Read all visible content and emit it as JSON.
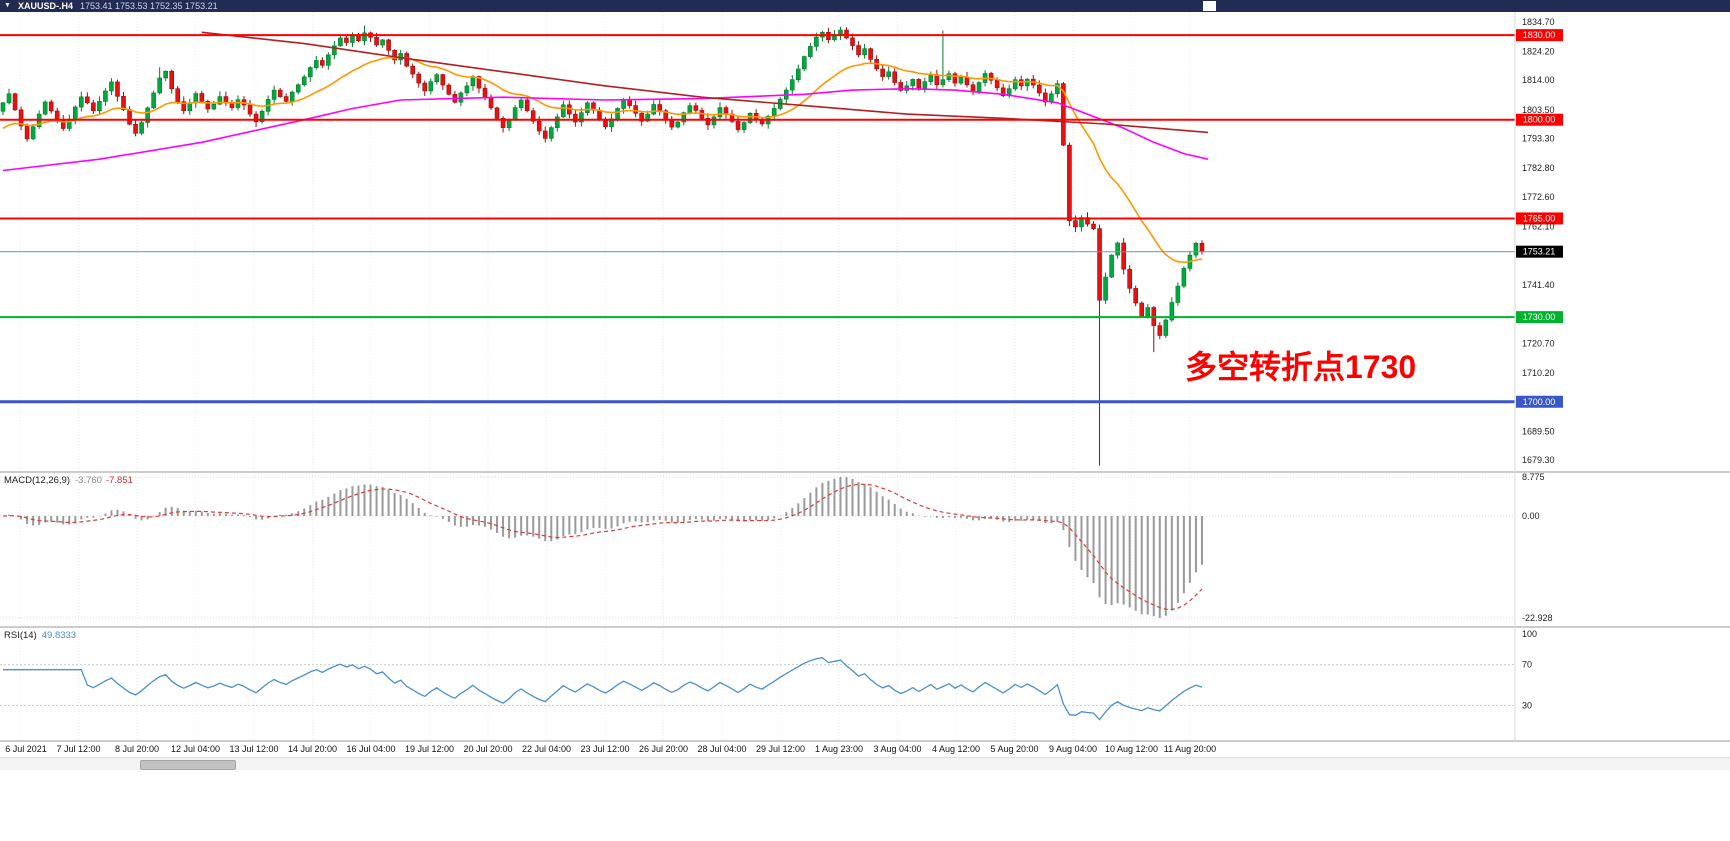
{
  "title_bar": {
    "dropdown_icon": "▼",
    "symbol": "XAUUSD-.H4",
    "ohlc": "1753.41 1753.53 1752.35 1753.21"
  },
  "annotation": {
    "text": "多空转折点1730",
    "color": "#ff0000"
  },
  "colors": {
    "candle_up": "#00a83e",
    "candle_up_border": "#077a2e",
    "candle_down": "#e61212",
    "candle_down_border": "#9c0b0b",
    "grid": "#ececec",
    "macd_hist": "#9a9a9a",
    "macd_signal": "#e03a3a",
    "rsi_line": "#4a8fce"
  },
  "price_axis": {
    "ticks": [
      "1834.70",
      "1824.20",
      "1814.00",
      "1803.50",
      "1793.30",
      "1782.80",
      "1772.60",
      "1762.10",
      "1741.40",
      "1720.70",
      "1710.20",
      "1689.50",
      "1679.30"
    ]
  },
  "macd": {
    "label": "MACD(12,26,9)",
    "value1": "-3.760",
    "value2": "-7.851",
    "axis": [
      "8.775",
      "0.00",
      "-22.928"
    ]
  },
  "rsi": {
    "label": "RSI(14)",
    "value": "49.8333",
    "axis": [
      "100",
      "70",
      "30"
    ],
    "levels": [
      70,
      30
    ]
  },
  "time_axis": {
    "labels": [
      "6 Jul 2021",
      "7 Jul 12:00",
      "8 Jul 20:00",
      "12 Jul 04:00",
      "13 Jul 12:00",
      "14 Jul 20:00",
      "16 Jul 04:00",
      "19 Jul 12:00",
      "20 Jul 20:00",
      "22 Jul 04:00",
      "23 Jul 12:00",
      "26 Jul 20:00",
      "28 Jul 04:00",
      "29 Jul 12:00",
      "1 Aug 23:00",
      "3 Aug 04:00",
      "4 Aug 12:00",
      "5 Aug 20:00",
      "9 Aug 04:00",
      "10 Aug 12:00",
      "11 Aug 20:00"
    ]
  },
  "chart_data": {
    "type": "candlestick",
    "symbol": "XAUUSD",
    "timeframe": "H4",
    "last_candle": {
      "open": 1753.41,
      "high": 1753.53,
      "low": 1752.35,
      "close": 1753.21
    },
    "y_axis": {
      "top": 1838.2,
      "bottom": 1675.8
    },
    "x_count": 200,
    "first_open": 1803.0,
    "closes": [
      1806.0,
      1809.2,
      1803.5,
      1797.8,
      1793.2,
      1797.5,
      1802.0,
      1806.3,
      1803.1,
      1799.8,
      1796.9,
      1800.2,
      1804.5,
      1808.1,
      1806.0,
      1803.2,
      1806.5,
      1810.2,
      1813.4,
      1808.3,
      1803.6,
      1798.4,
      1795.2,
      1799.0,
      1804.2,
      1809.5,
      1814.8,
      1817.2,
      1811.0,
      1806.4,
      1803.2,
      1806.0,
      1809.3,
      1806.5,
      1803.8,
      1805.5,
      1808.2,
      1806.0,
      1804.3,
      1807.1,
      1805.2,
      1802.0,
      1799.3,
      1803.0,
      1807.2,
      1810.5,
      1808.2,
      1806.5,
      1809.8,
      1812.4,
      1815.2,
      1818.5,
      1821.0,
      1819.3,
      1823.0,
      1826.2,
      1829.0,
      1827.4,
      1830.2,
      1828.0,
      1830.8,
      1829.2,
      1826.5,
      1828.3,
      1824.6,
      1821.2,
      1823.5,
      1819.0,
      1816.2,
      1813.0,
      1810.2,
      1813.5,
      1816.0,
      1812.3,
      1809.0,
      1806.2,
      1809.5,
      1812.0,
      1815.3,
      1811.2,
      1808.0,
      1804.2,
      1800.5,
      1797.2,
      1800.0,
      1804.3,
      1807.0,
      1803.2,
      1799.5,
      1796.0,
      1793.4,
      1797.2,
      1801.0,
      1805.3,
      1802.0,
      1799.2,
      1802.5,
      1806.0,
      1803.4,
      1800.2,
      1797.5,
      1800.3,
      1804.0,
      1807.2,
      1805.0,
      1802.3,
      1799.5,
      1802.0,
      1805.4,
      1803.2,
      1800.0,
      1797.4,
      1799.2,
      1802.5,
      1805.0,
      1803.3,
      1800.5,
      1798.2,
      1801.0,
      1804.3,
      1802.0,
      1799.4,
      1796.5,
      1799.0,
      1802.3,
      1800.0,
      1798.5,
      1801.2,
      1804.0,
      1807.3,
      1810.5,
      1814.2,
      1818.0,
      1822.4,
      1826.0,
      1829.3,
      1831.0,
      1828.4,
      1830.2,
      1831.8,
      1829.0,
      1826.3,
      1823.0,
      1825.2,
      1821.4,
      1818.0,
      1815.3,
      1817.0,
      1813.2,
      1810.4,
      1812.0,
      1814.3,
      1811.2,
      1813.5,
      1816.0,
      1812.4,
      1814.2,
      1816.3,
      1813.0,
      1815.2,
      1812.4,
      1810.0,
      1813.2,
      1816.4,
      1814.0,
      1811.3,
      1808.5,
      1811.0,
      1814.2,
      1812.0,
      1814.4,
      1812.3,
      1809.5,
      1806.3,
      1809.2,
      1812.8,
      1791.0,
      1764.2,
      1762.0,
      1765.3,
      1763.0,
      1761.4,
      1736.0,
      1744.2,
      1752.0,
      1756.3,
      1747.0,
      1740.2,
      1735.0,
      1730.2,
      1733.4,
      1727.0,
      1723.5,
      1729.0,
      1735.2,
      1741.0,
      1747.3,
      1752.0,
      1756.2,
      1753.2
    ],
    "wick_overrides": {
      "26": {
        "high": 1818.6
      },
      "60": {
        "high": 1833.4
      },
      "139": {
        "high": 1833.0
      },
      "156": {
        "high": 1831.6
      },
      "182": {
        "low": 1677.4
      },
      "191": {
        "low": 1717.6
      }
    },
    "overlays": [
      {
        "name": "ma-fast-orange",
        "type": "ema",
        "period": 20,
        "seed": 1796,
        "color": "#ff9800"
      },
      {
        "name": "ma-mid-magenta",
        "type": "waypoints",
        "color": "#ff00ff",
        "points": [
          [
            0,
            1782
          ],
          [
            16,
            1786
          ],
          [
            33,
            1792
          ],
          [
            50,
            1800
          ],
          [
            58,
            1804
          ],
          [
            66,
            1807
          ],
          [
            83,
            1808
          ],
          [
            100,
            1807
          ],
          [
            116,
            1807.5
          ],
          [
            133,
            1809
          ],
          [
            141,
            1810.5
          ],
          [
            150,
            1811
          ],
          [
            158,
            1810.5
          ],
          [
            166,
            1809
          ],
          [
            175,
            1806
          ],
          [
            180,
            1802
          ],
          [
            186,
            1797
          ],
          [
            191,
            1792
          ],
          [
            196,
            1788
          ],
          [
            200,
            1786
          ]
        ]
      },
      {
        "name": "ma-slow-darkred",
        "type": "waypoints",
        "color": "#b22020",
        "points": [
          [
            33,
            1831
          ],
          [
            50,
            1827
          ],
          [
            66,
            1822
          ],
          [
            83,
            1817
          ],
          [
            100,
            1812
          ],
          [
            116,
            1808
          ],
          [
            133,
            1805
          ],
          [
            150,
            1802
          ],
          [
            166,
            1800.5
          ],
          [
            183,
            1798.5
          ],
          [
            200,
            1795.5
          ]
        ]
      }
    ],
    "hlines": [
      {
        "price": 1830.0,
        "label": "1830.00",
        "color": "#fe0000",
        "width": 2
      },
      {
        "price": 1800.0,
        "label": "1800.00",
        "color": "#fe0000",
        "width": 2
      },
      {
        "price": 1765.0,
        "label": "1765.00",
        "color": "#fe0000",
        "width": 2
      },
      {
        "price": 1753.21,
        "label": "1753.21",
        "color": "#7291a9",
        "width": 1,
        "tag_bg": "#000000"
      },
      {
        "price": 1730.0,
        "label": "1730.00",
        "color": "#00b22d",
        "width": 2
      },
      {
        "price": 1700.0,
        "label": "1700.00",
        "color": "#3a57c8",
        "width": 3
      }
    ],
    "indicators": {
      "macd": {
        "fast": 12,
        "slow": 26,
        "signal": 9
      },
      "rsi": {
        "period": 14
      }
    }
  }
}
